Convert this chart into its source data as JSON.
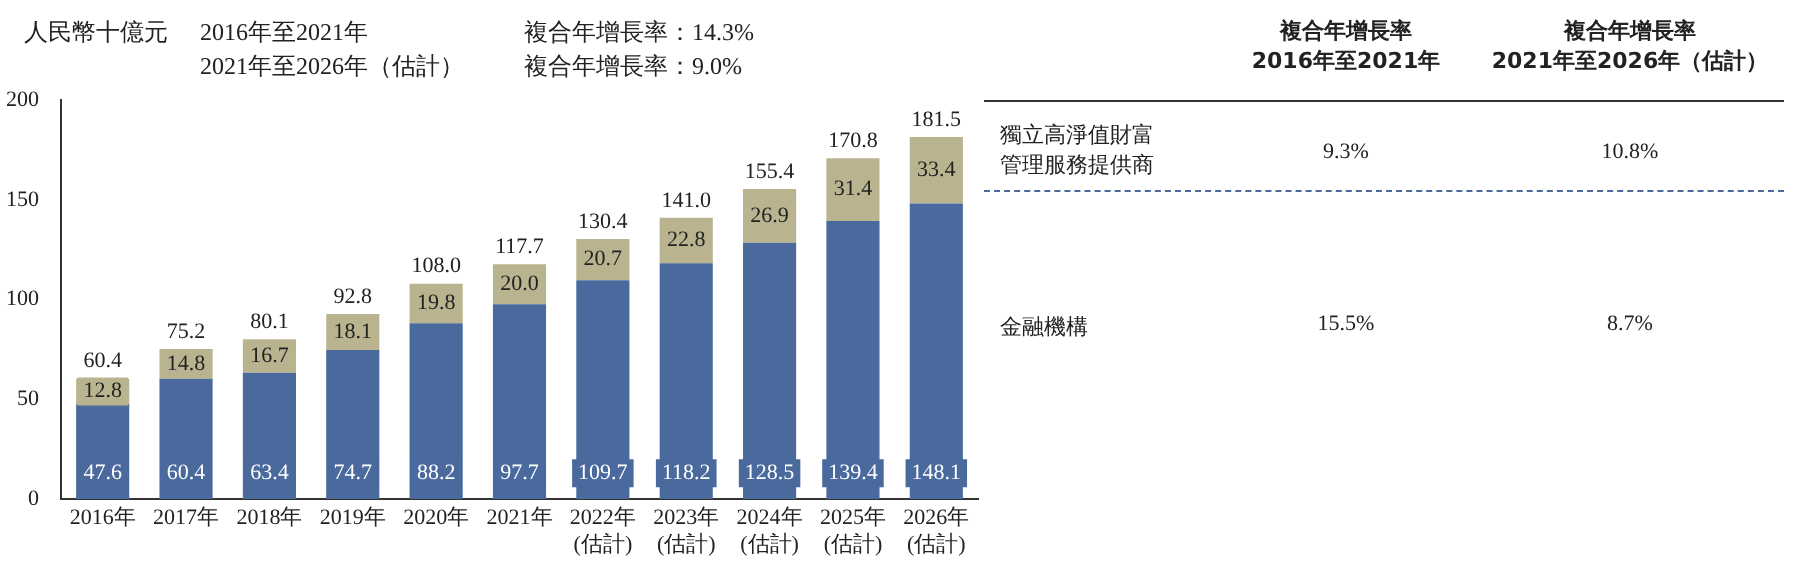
{
  "chart_data": {
    "type": "bar",
    "stacked": true,
    "ylabel": "人民幣十億元",
    "categories": [
      "2016年",
      "2017年",
      "2018年",
      "2019年",
      "2020年",
      "2021年",
      "2022年\n(估計)",
      "2023年\n(估計)",
      "2024年\n(估計)",
      "2025年\n(估計)",
      "2026年\n(估計)"
    ],
    "series": [
      {
        "name": "金融機構",
        "color": "#4a6a9e",
        "values": [
          47.6,
          60.4,
          63.4,
          74.7,
          88.2,
          97.7,
          109.7,
          118.2,
          128.5,
          139.4,
          148.1
        ],
        "value_labels": [
          "47.6",
          "60.4",
          "63.4",
          "74.7",
          "88.2",
          "97.7",
          "109.7",
          "118.2",
          "128.5",
          "139.4",
          "148.1"
        ]
      },
      {
        "name": "獨立高淨值財富管理服務提供商",
        "color": "#b9b48f",
        "values": [
          12.8,
          14.8,
          16.7,
          18.1,
          19.8,
          20.0,
          20.7,
          22.8,
          26.9,
          31.4,
          33.4
        ],
        "value_labels": [
          "12.8",
          "14.8",
          "16.7",
          "18.1",
          "19.8",
          "20.0",
          "20.7",
          "22.8",
          "26.9",
          "31.4",
          "33.4"
        ]
      }
    ],
    "totals": [
      "60.4",
      "75.2",
      "80.1",
      "92.8",
      "108.0",
      "117.7",
      "130.4",
      "141.0",
      "155.4",
      "170.8",
      "181.5"
    ],
    "ylim": [
      0,
      200
    ],
    "yticks": [
      0,
      50,
      100,
      150,
      200
    ],
    "grid": false,
    "legend": false,
    "annotations": [
      "2016年至2021年",
      "2021年至2026年（估計）",
      "複合年增長率：14.3%",
      "複合年增長率：9.0%",
      "複合年增長率\n2016年至2021年",
      "複合年增長率\n2021年至2026年（估計）",
      "9.3%",
      "10.8%",
      "15.5%",
      "8.7%"
    ]
  }
}
